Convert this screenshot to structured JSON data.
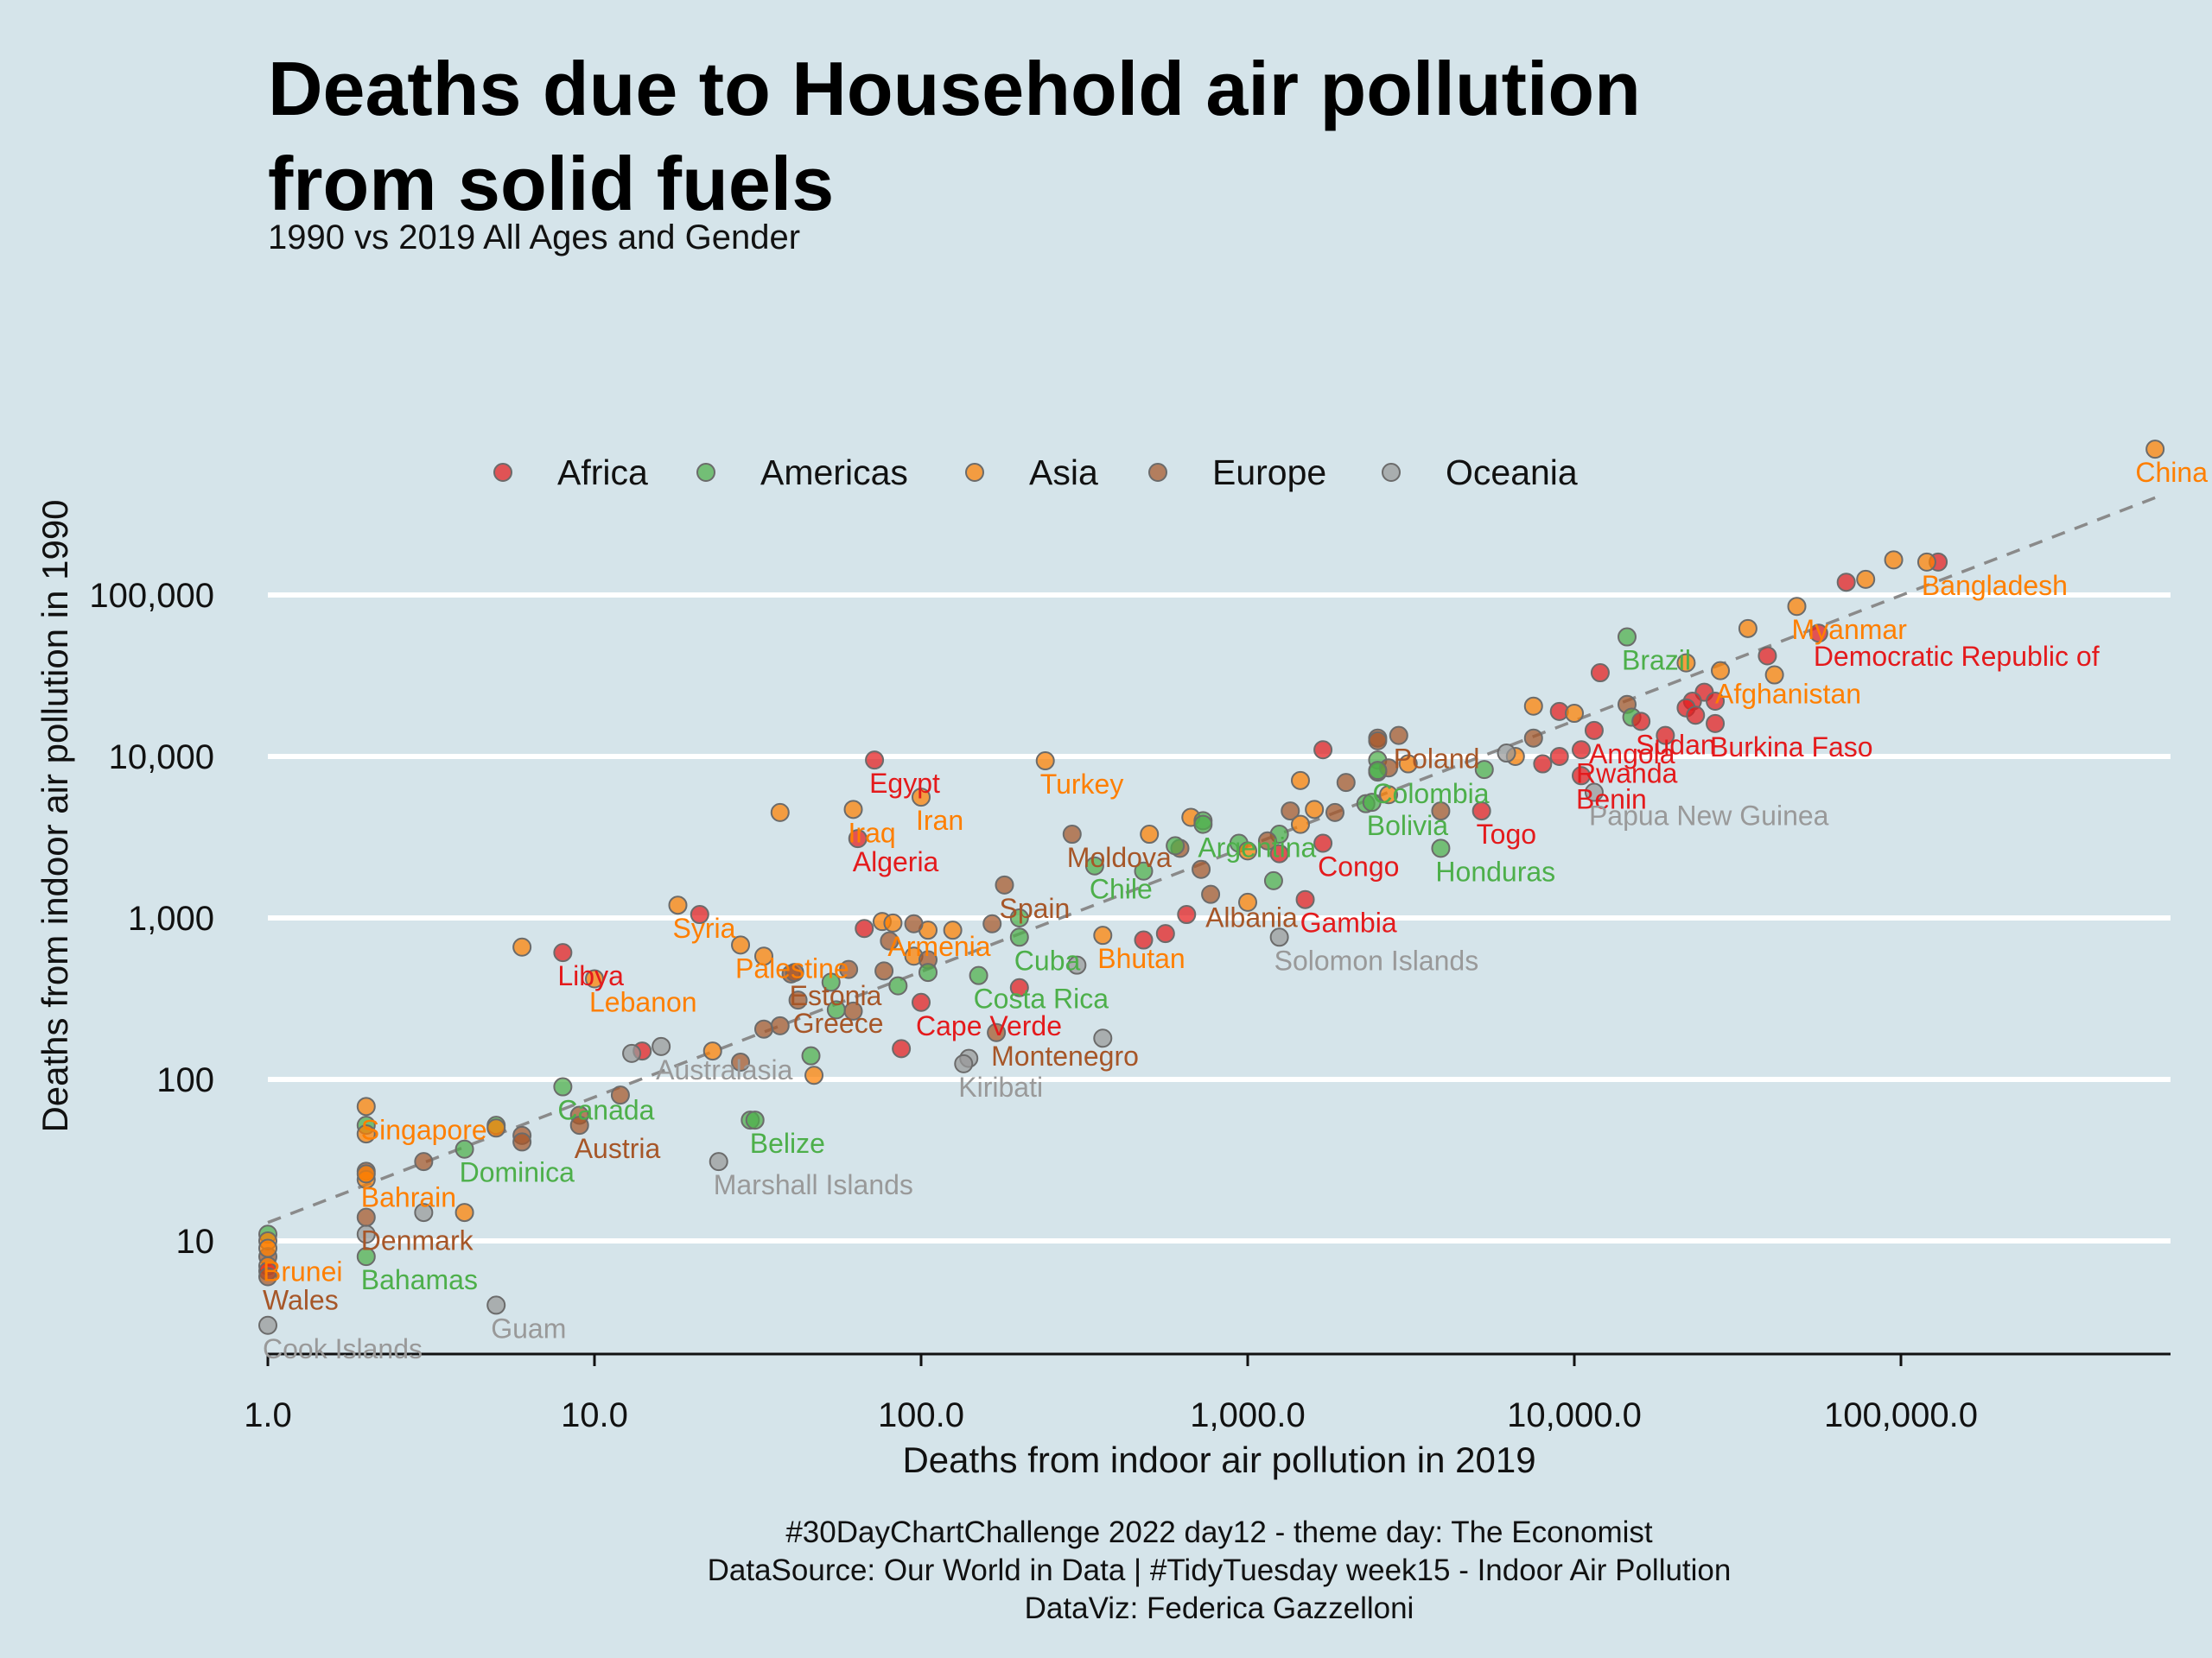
{
  "chart_data": {
    "type": "scatter",
    "title": "Deaths due to Household air pollution from solid fuels",
    "title_lines": [
      "Deaths due to Household air pollution",
      "from solid fuels"
    ],
    "subtitle": "1990 vs 2019 All Ages and Gender",
    "xlabel": "Deaths from indoor air pollution in 2019",
    "ylabel": "Deaths from indoor air pollution in 1990",
    "x_scale": "log10",
    "y_scale": "log10",
    "xlim": [
      1,
      650000
    ],
    "ylim": [
      2,
      1000000
    ],
    "x_ticks": [
      1,
      10,
      100,
      1000,
      10000,
      100000
    ],
    "x_tick_labels": [
      "1.0",
      "10.0",
      "100.0",
      "1,000.0",
      "10,000.0",
      "100,000.0"
    ],
    "y_ticks": [
      10,
      100,
      1000,
      10000,
      100000
    ],
    "y_tick_labels": [
      "10",
      "100",
      "1,000",
      "10,000",
      "100,000"
    ],
    "grid": "horizontal, white",
    "reference_line": {
      "style": "dashed",
      "color": "#8a8a8a",
      "from": [
        1,
        13
      ],
      "to": [
        600000,
        400000
      ]
    },
    "legend_position": "top",
    "legend": [
      "Africa",
      "Americas",
      "Asia",
      "Europe",
      "Oceania"
    ],
    "colors": {
      "Africa": "#e41a1c",
      "Americas": "#4daf4a",
      "Asia": "#ff7f00",
      "Europe": "#a65628",
      "Oceania": "#999999"
    },
    "labeled_points": [
      {
        "label": "China",
        "region": "Asia",
        "x": 600000,
        "y": 800000
      },
      {
        "label": "Bangladesh",
        "region": "Asia",
        "x": 120000,
        "y": 160000
      },
      {
        "label": "Myanmar",
        "region": "Asia",
        "x": 48000,
        "y": 85000
      },
      {
        "label": "Democratic Republic of",
        "region": "Africa",
        "x": 56000,
        "y": 58000
      },
      {
        "label": "Afghanistan",
        "region": "Asia",
        "x": 28000,
        "y": 34000
      },
      {
        "label": "Brazil",
        "region": "Americas",
        "x": 14500,
        "y": 55000
      },
      {
        "label": "Sudan",
        "region": "Africa",
        "x": 16000,
        "y": 16500
      },
      {
        "label": "Burkina Faso",
        "region": "Africa",
        "x": 27000,
        "y": 16000
      },
      {
        "label": "Angola",
        "region": "Africa",
        "x": 11500,
        "y": 14500
      },
      {
        "label": "Rwanda",
        "region": "Africa",
        "x": 10500,
        "y": 11000
      },
      {
        "label": "Benin",
        "region": "Africa",
        "x": 10500,
        "y": 7600
      },
      {
        "label": "Papua New Guinea",
        "region": "Oceania",
        "x": 11500,
        "y": 6000
      },
      {
        "label": "Poland",
        "region": "Europe",
        "x": 2900,
        "y": 13500
      },
      {
        "label": "Colombia",
        "region": "Americas",
        "x": 2500,
        "y": 8200
      },
      {
        "label": "Bolivia",
        "region": "Americas",
        "x": 2400,
        "y": 5200
      },
      {
        "label": "Togo",
        "region": "Africa",
        "x": 5200,
        "y": 4600
      },
      {
        "label": "Honduras",
        "region": "Americas",
        "x": 3900,
        "y": 2700
      },
      {
        "label": "Congo",
        "region": "Africa",
        "x": 1700,
        "y": 2900
      },
      {
        "label": "Gambia",
        "region": "Africa",
        "x": 1500,
        "y": 1300
      },
      {
        "label": "Solomon Islands",
        "region": "Oceania",
        "x": 1250,
        "y": 760
      },
      {
        "label": "Argentina",
        "region": "Americas",
        "x": 730,
        "y": 3800
      },
      {
        "label": "Albania",
        "region": "Europe",
        "x": 770,
        "y": 1400
      },
      {
        "label": "Moldova",
        "region": "Europe",
        "x": 290,
        "y": 3300
      },
      {
        "label": "Chile",
        "region": "Americas",
        "x": 340,
        "y": 2100
      },
      {
        "label": "Spain",
        "region": "Europe",
        "x": 180,
        "y": 1600
      },
      {
        "label": "Bhutan",
        "region": "Asia",
        "x": 360,
        "y": 780
      },
      {
        "label": "Cuba",
        "region": "Americas",
        "x": 200,
        "y": 760
      },
      {
        "label": "Turkey",
        "region": "Asia",
        "x": 240,
        "y": 9400
      },
      {
        "label": "Egypt",
        "region": "Africa",
        "x": 72,
        "y": 9500
      },
      {
        "label": "Iran",
        "region": "Asia",
        "x": 100,
        "y": 5600
      },
      {
        "label": "Iraq",
        "region": "Asia",
        "x": 62,
        "y": 4700
      },
      {
        "label": "Algeria",
        "region": "Africa",
        "x": 64,
        "y": 3100
      },
      {
        "label": "Armenia",
        "region": "Asia",
        "x": 82,
        "y": 930
      },
      {
        "label": "Costa Rica",
        "region": "Americas",
        "x": 150,
        "y": 440
      },
      {
        "label": "Cape Verde",
        "region": "Africa",
        "x": 100,
        "y": 300
      },
      {
        "label": "Montenegro",
        "region": "Europe",
        "x": 170,
        "y": 195
      },
      {
        "label": "Kiribati",
        "region": "Oceania",
        "x": 135,
        "y": 125
      },
      {
        "label": "Syria",
        "region": "Asia",
        "x": 18,
        "y": 1200
      },
      {
        "label": "Palestine",
        "region": "Asia",
        "x": 28,
        "y": 680
      },
      {
        "label": "Estonia",
        "region": "Europe",
        "x": 41,
        "y": 460
      },
      {
        "label": "Greece",
        "region": "Europe",
        "x": 42,
        "y": 310
      },
      {
        "label": "Libya",
        "region": "Africa",
        "x": 8,
        "y": 610
      },
      {
        "label": "Lebanon",
        "region": "Asia",
        "x": 10,
        "y": 420
      },
      {
        "label": "Australasia",
        "region": "Oceania",
        "x": 16,
        "y": 160
      },
      {
        "label": "Belize",
        "region": "Americas",
        "x": 31,
        "y": 56
      },
      {
        "label": "Marshall Islands",
        "region": "Oceania",
        "x": 24,
        "y": 31
      },
      {
        "label": "Canada",
        "region": "Americas",
        "x": 8,
        "y": 90
      },
      {
        "label": "Austria",
        "region": "Europe",
        "x": 9,
        "y": 52
      },
      {
        "label": "Dominica",
        "region": "Americas",
        "x": 4,
        "y": 37
      },
      {
        "label": "Singapore",
        "region": "Asia",
        "x": 2,
        "y": 68
      },
      {
        "label": "Bahrain",
        "region": "Asia",
        "x": 2,
        "y": 26
      },
      {
        "label": "Denmark",
        "region": "Europe",
        "x": 2,
        "y": 14
      },
      {
        "label": "Bahamas",
        "region": "Americas",
        "x": 2,
        "y": 8
      },
      {
        "label": "Brunei",
        "region": "Asia",
        "x": 1,
        "y": 9
      },
      {
        "label": "Wales",
        "region": "Europe",
        "x": 1,
        "y": 6
      },
      {
        "label": "Guam",
        "region": "Oceania",
        "x": 5,
        "y": 4
      },
      {
        "label": "Cook Islands",
        "region": "Oceania",
        "x": 1,
        "y": 3
      }
    ],
    "unlabeled_points": [
      {
        "region": "Africa",
        "x": 130000,
        "y": 160000
      },
      {
        "region": "Africa",
        "x": 68000,
        "y": 120000
      },
      {
        "region": "Asia",
        "x": 78000,
        "y": 125000
      },
      {
        "region": "Asia",
        "x": 95000,
        "y": 165000
      },
      {
        "region": "Asia",
        "x": 34000,
        "y": 62000
      },
      {
        "region": "Africa",
        "x": 39000,
        "y": 42000
      },
      {
        "region": "Asia",
        "x": 41000,
        "y": 32000
      },
      {
        "region": "Asia",
        "x": 22000,
        "y": 38000
      },
      {
        "region": "Africa",
        "x": 12000,
        "y": 33000
      },
      {
        "region": "Africa",
        "x": 25000,
        "y": 25000
      },
      {
        "region": "Africa",
        "x": 23000,
        "y": 22000
      },
      {
        "region": "Africa",
        "x": 22000,
        "y": 20000
      },
      {
        "region": "Africa",
        "x": 27000,
        "y": 22000
      },
      {
        "region": "Asia",
        "x": 7500,
        "y": 20500
      },
      {
        "region": "Africa",
        "x": 9000,
        "y": 19000
      },
      {
        "region": "Asia",
        "x": 10000,
        "y": 18500
      },
      {
        "region": "Europe",
        "x": 14500,
        "y": 21000
      },
      {
        "region": "Americas",
        "x": 15000,
        "y": 17500
      },
      {
        "region": "Africa",
        "x": 19000,
        "y": 13500
      },
      {
        "region": "Africa",
        "x": 23500,
        "y": 18000
      },
      {
        "region": "Europe",
        "x": 7500,
        "y": 13000
      },
      {
        "region": "Africa",
        "x": 8000,
        "y": 9000
      },
      {
        "region": "Africa",
        "x": 9000,
        "y": 10000
      },
      {
        "region": "Asia",
        "x": 6600,
        "y": 10000
      },
      {
        "region": "Oceania",
        "x": 6200,
        "y": 10500
      },
      {
        "region": "Africa",
        "x": 1700,
        "y": 11000
      },
      {
        "region": "Europe",
        "x": 2500,
        "y": 13000
      },
      {
        "region": "Europe",
        "x": 2500,
        "y": 12500
      },
      {
        "region": "Asia",
        "x": 3100,
        "y": 9000
      },
      {
        "region": "Americas",
        "x": 2500,
        "y": 9500
      },
      {
        "region": "Americas",
        "x": 2500,
        "y": 8000
      },
      {
        "region": "Europe",
        "x": 2700,
        "y": 8500
      },
      {
        "region": "Europe",
        "x": 2000,
        "y": 6900
      },
      {
        "region": "Asia",
        "x": 1450,
        "y": 7100
      },
      {
        "region": "Asia",
        "x": 2700,
        "y": 5800
      },
      {
        "region": "Americas",
        "x": 2300,
        "y": 5100
      },
      {
        "region": "Europe",
        "x": 1350,
        "y": 4600
      },
      {
        "region": "Asia",
        "x": 1600,
        "y": 4700
      },
      {
        "region": "Europe",
        "x": 1850,
        "y": 4500
      },
      {
        "region": "Americas",
        "x": 5300,
        "y": 8300
      },
      {
        "region": "Europe",
        "x": 3900,
        "y": 4600
      },
      {
        "region": "Asia",
        "x": 1450,
        "y": 3800
      },
      {
        "region": "Americas",
        "x": 1250,
        "y": 3300
      },
      {
        "region": "Americas",
        "x": 940,
        "y": 2900
      },
      {
        "region": "Asia",
        "x": 1000,
        "y": 2600
      },
      {
        "region": "Africa",
        "x": 1250,
        "y": 2500
      },
      {
        "region": "Europe",
        "x": 1150,
        "y": 3000
      },
      {
        "region": "Americas",
        "x": 1200,
        "y": 1700
      },
      {
        "region": "Asia",
        "x": 670,
        "y": 4200
      },
      {
        "region": "Americas",
        "x": 730,
        "y": 4000
      },
      {
        "region": "Europe",
        "x": 620,
        "y": 2700
      },
      {
        "region": "Asia",
        "x": 500,
        "y": 3300
      },
      {
        "region": "Americas",
        "x": 600,
        "y": 2800
      },
      {
        "region": "Americas",
        "x": 480,
        "y": 1950
      },
      {
        "region": "Europe",
        "x": 720,
        "y": 2000
      },
      {
        "region": "Africa",
        "x": 650,
        "y": 1050
      },
      {
        "region": "Asia",
        "x": 1000,
        "y": 1250
      },
      {
        "region": "Africa",
        "x": 560,
        "y": 800
      },
      {
        "region": "Africa",
        "x": 480,
        "y": 730
      },
      {
        "region": "Oceania",
        "x": 300,
        "y": 510
      },
      {
        "region": "Americas",
        "x": 200,
        "y": 1000
      },
      {
        "region": "Europe",
        "x": 165,
        "y": 920
      },
      {
        "region": "Asia",
        "x": 125,
        "y": 840
      },
      {
        "region": "Asia",
        "x": 105,
        "y": 840
      },
      {
        "region": "Europe",
        "x": 95,
        "y": 920
      },
      {
        "region": "Asia",
        "x": 76,
        "y": 950
      },
      {
        "region": "Africa",
        "x": 67,
        "y": 860
      },
      {
        "region": "Europe",
        "x": 80,
        "y": 720
      },
      {
        "region": "Asia",
        "x": 95,
        "y": 580
      },
      {
        "region": "Europe",
        "x": 105,
        "y": 550
      },
      {
        "region": "Americas",
        "x": 105,
        "y": 460
      },
      {
        "region": "Europe",
        "x": 77,
        "y": 470
      },
      {
        "region": "Americas",
        "x": 85,
        "y": 380
      },
      {
        "region": "Europe",
        "x": 60,
        "y": 480
      },
      {
        "region": "Americas",
        "x": 53,
        "y": 400
      },
      {
        "region": "Asia",
        "x": 33,
        "y": 580
      },
      {
        "region": "Europe",
        "x": 40,
        "y": 450
      },
      {
        "region": "Americas",
        "x": 55,
        "y": 270
      },
      {
        "region": "Europe",
        "x": 62,
        "y": 265
      },
      {
        "region": "Africa",
        "x": 200,
        "y": 370
      },
      {
        "region": "Africa",
        "x": 87,
        "y": 155
      },
      {
        "region": "Oceania",
        "x": 360,
        "y": 180
      },
      {
        "region": "Oceania",
        "x": 140,
        "y": 135
      },
      {
        "region": "Europe",
        "x": 37,
        "y": 215
      },
      {
        "region": "Europe",
        "x": 33,
        "y": 205
      },
      {
        "region": "Europe",
        "x": 28,
        "y": 128
      },
      {
        "region": "Asia",
        "x": 23,
        "y": 150
      },
      {
        "region": "Americas",
        "x": 46,
        "y": 140
      },
      {
        "region": "Asia",
        "x": 47,
        "y": 106
      },
      {
        "region": "Asia",
        "x": 37,
        "y": 4500
      },
      {
        "region": "Asia",
        "x": 6,
        "y": 660
      },
      {
        "region": "Africa",
        "x": 21,
        "y": 1050
      },
      {
        "region": "Africa",
        "x": 14,
        "y": 150
      },
      {
        "region": "Oceania",
        "x": 13,
        "y": 145
      },
      {
        "region": "Europe",
        "x": 12,
        "y": 80
      },
      {
        "region": "Americas",
        "x": 30,
        "y": 56
      },
      {
        "region": "Europe",
        "x": 9,
        "y": 60
      },
      {
        "region": "Americas",
        "x": 5,
        "y": 52
      },
      {
        "region": "Asia",
        "x": 5,
        "y": 50
      },
      {
        "region": "Europe",
        "x": 6,
        "y": 45
      },
      {
        "region": "Europe",
        "x": 6,
        "y": 41
      },
      {
        "region": "Europe",
        "x": 3,
        "y": 31
      },
      {
        "region": "Americas",
        "x": 2,
        "y": 52
      },
      {
        "region": "Asia",
        "x": 2,
        "y": 46
      },
      {
        "region": "Europe",
        "x": 2,
        "y": 27
      },
      {
        "region": "Asia",
        "x": 2,
        "y": 24
      },
      {
        "region": "Oceania",
        "x": 3,
        "y": 15
      },
      {
        "region": "Asia",
        "x": 4,
        "y": 15
      },
      {
        "region": "Oceania",
        "x": 2,
        "y": 11
      },
      {
        "region": "Americas",
        "x": 1,
        "y": 11
      },
      {
        "region": "Asia",
        "x": 1,
        "y": 10
      },
      {
        "region": "Europe",
        "x": 1,
        "y": 8
      },
      {
        "region": "Asia",
        "x": 1,
        "y": 7
      },
      {
        "region": "Africa",
        "x": 1,
        "y": 6.5
      }
    ]
  },
  "caption_lines": [
    "#30DayChartChallenge 2022 day12 - theme day: The Economist",
    "DataSource: Our World in Data | #TidyTuesday week15 - Indoor Air Pollution",
    "DataViz: Federica Gazzelloni"
  ],
  "background_color": "#d5e4ea"
}
